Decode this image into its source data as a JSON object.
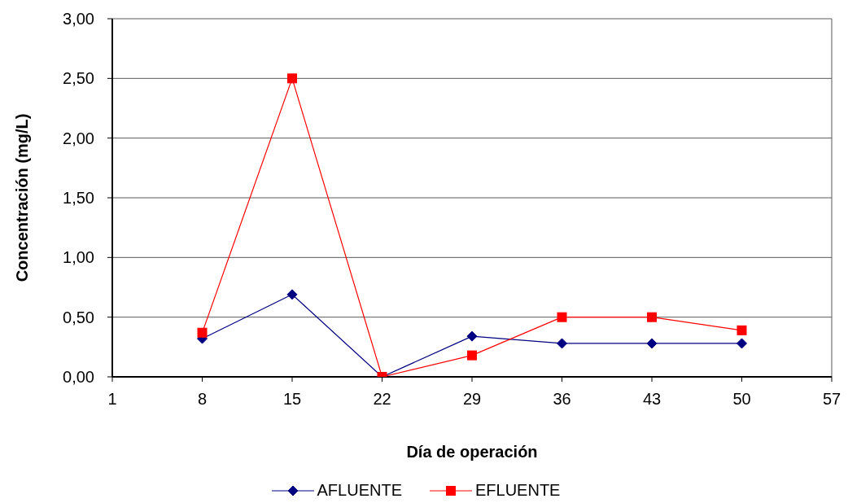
{
  "chart_data": {
    "type": "line",
    "xlabel": "Día de operación",
    "ylabel": "Concentración (mg/L)",
    "x": [
      8,
      15,
      22,
      29,
      36,
      43,
      50
    ],
    "series": [
      {
        "name": "AFLUENTE",
        "color": "#000080",
        "marker": "diamond",
        "values": [
          0.32,
          0.69,
          0.0,
          0.34,
          0.28,
          0.28,
          0.28
        ]
      },
      {
        "name": "EFLUENTE",
        "color": "#ff0000",
        "marker": "square",
        "values": [
          0.37,
          2.5,
          0.0,
          0.18,
          0.5,
          0.5,
          0.39
        ]
      }
    ],
    "xlim": [
      1,
      57
    ],
    "xticks": [
      1,
      8,
      15,
      22,
      29,
      36,
      43,
      50,
      57
    ],
    "ylim": [
      0,
      3
    ],
    "yticks": [
      {
        "value": 0,
        "label": "0,00"
      },
      {
        "value": 0.5,
        "label": "0,50"
      },
      {
        "value": 1,
        "label": "1,00"
      },
      {
        "value": 1.5,
        "label": "1,50"
      },
      {
        "value": 2,
        "label": "2,00"
      },
      {
        "value": 2.5,
        "label": "2,50"
      },
      {
        "value": 3,
        "label": "3,00"
      }
    ],
    "grid": "y",
    "legend": "bottom",
    "line_style": "solid"
  }
}
